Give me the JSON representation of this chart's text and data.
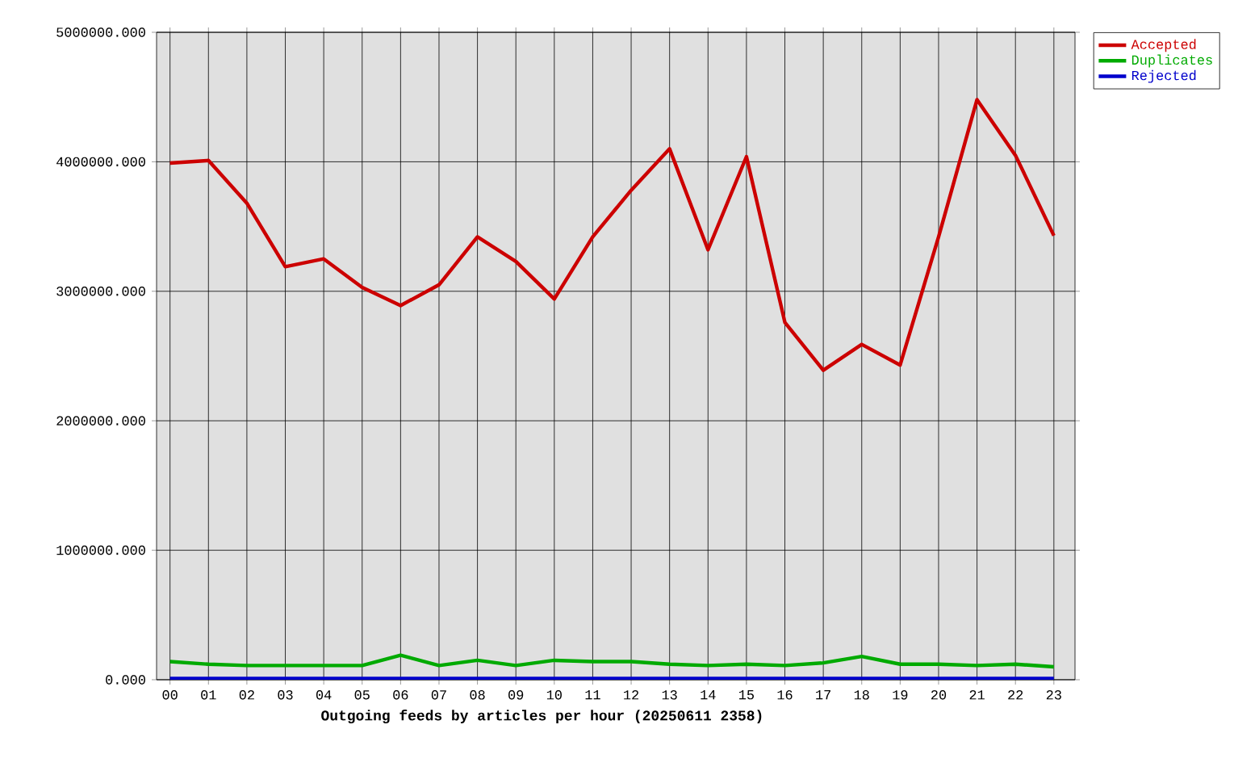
{
  "chart_data": {
    "type": "line",
    "xlabel": "Outgoing feeds by articles per hour (20250611 2358)",
    "categories": [
      "00",
      "01",
      "02",
      "03",
      "04",
      "05",
      "06",
      "07",
      "08",
      "09",
      "10",
      "11",
      "12",
      "13",
      "14",
      "15",
      "16",
      "17",
      "18",
      "19",
      "20",
      "21",
      "22",
      "23"
    ],
    "series": [
      {
        "name": "Accepted",
        "color": "#cc0000",
        "values": [
          3990000,
          4010000,
          3680000,
          3190000,
          3250000,
          3030000,
          2890000,
          3050000,
          3420000,
          3230000,
          2940000,
          3420000,
          3780000,
          4100000,
          3320000,
          4040000,
          2760000,
          2390000,
          2590000,
          2430000,
          3420000,
          4480000,
          4050000,
          3430000
        ]
      },
      {
        "name": "Duplicates",
        "color": "#00aa00",
        "values": [
          140000,
          120000,
          110000,
          110000,
          110000,
          110000,
          190000,
          110000,
          150000,
          110000,
          150000,
          140000,
          140000,
          120000,
          110000,
          120000,
          110000,
          130000,
          180000,
          120000,
          120000,
          110000,
          120000,
          100000
        ]
      },
      {
        "name": "Rejected",
        "color": "#0000cc",
        "values": [
          10000,
          10000,
          10000,
          10000,
          10000,
          10000,
          10000,
          10000,
          10000,
          10000,
          10000,
          10000,
          10000,
          10000,
          10000,
          10000,
          10000,
          10000,
          10000,
          10000,
          10000,
          10000,
          10000,
          10000
        ]
      }
    ],
    "ylim": [
      0,
      5000000
    ],
    "yticks": [
      {
        "value": 0,
        "label": "0.000"
      },
      {
        "value": 1000000,
        "label": "1000000.000"
      },
      {
        "value": 2000000,
        "label": "2000000.000"
      },
      {
        "value": 3000000,
        "label": "3000000.000"
      },
      {
        "value": 4000000,
        "label": "4000000.000"
      },
      {
        "value": 5000000,
        "label": "5000000.000"
      }
    ],
    "grid": true,
    "legend": "top right",
    "marker": "none",
    "line_style": "solid"
  }
}
